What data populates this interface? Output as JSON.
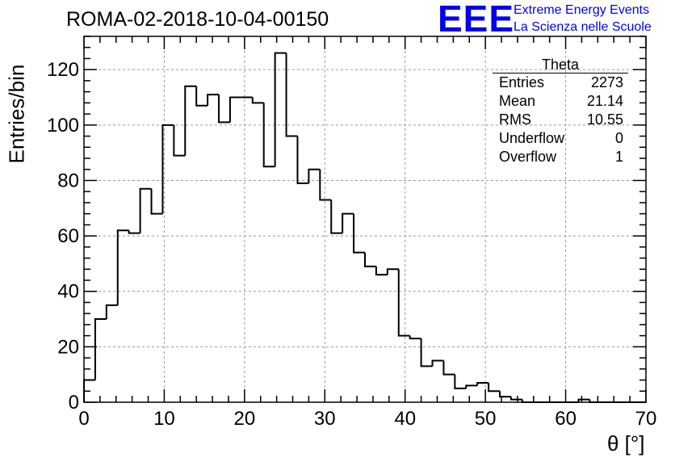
{
  "brand": {
    "logo_text": "EEE",
    "line1": "Extreme Energy Events",
    "line2": "La Scienza nelle Scuole",
    "color": "#0000ee"
  },
  "chart_data": {
    "type": "bar",
    "histogram": true,
    "title": "ROMA-02-2018-10-04-00150",
    "xlabel": "θ [°]",
    "ylabel": "Entries/bin",
    "xlim": [
      0,
      70
    ],
    "ylim": [
      0,
      132
    ],
    "xticks": [
      0,
      10,
      20,
      30,
      40,
      50,
      60,
      70
    ],
    "yticks": [
      0,
      20,
      40,
      60,
      80,
      100,
      120
    ],
    "grid": true,
    "bin_width": 1.4,
    "series": [
      {
        "values": [
          8,
          30,
          35,
          62,
          61,
          77,
          68,
          100,
          89,
          114,
          107,
          111,
          101,
          110,
          110,
          108,
          85,
          126,
          96,
          79,
          84,
          73,
          61,
          68,
          54,
          49,
          46,
          48,
          24,
          23,
          13,
          15,
          10,
          5,
          6,
          7,
          4,
          2,
          1,
          0,
          0,
          0,
          0,
          0,
          1,
          0,
          0,
          0,
          0,
          0
        ]
      }
    ],
    "stats_box": {
      "title": "Theta",
      "placement": "top-right",
      "rows": [
        {
          "label": "Entries",
          "value": "2273"
        },
        {
          "label": "Mean",
          "value": "21.14"
        },
        {
          "label": "RMS",
          "value": "10.55"
        },
        {
          "label": "Underflow",
          "value": "0"
        },
        {
          "label": "Overflow",
          "value": "1"
        }
      ]
    }
  }
}
